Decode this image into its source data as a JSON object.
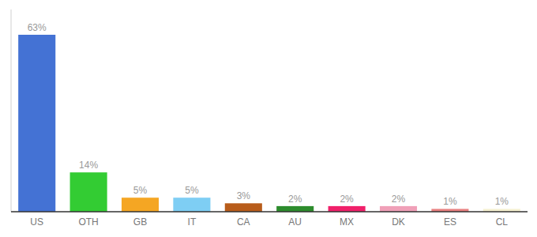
{
  "chart_data": {
    "type": "bar",
    "categories": [
      "US",
      "OTH",
      "GB",
      "IT",
      "CA",
      "AU",
      "MX",
      "DK",
      "ES",
      "CL"
    ],
    "values": [
      63,
      14,
      5,
      5,
      3,
      2,
      2,
      2,
      1,
      1
    ],
    "value_labels": [
      "63%",
      "14%",
      "5%",
      "5%",
      "3%",
      "2%",
      "2%",
      "2%",
      "1%",
      "1%"
    ],
    "colors": [
      "#4472d4",
      "#33cc33",
      "#f5a623",
      "#7ecef4",
      "#b85c1a",
      "#2d8c2d",
      "#f0206a",
      "#f0a0b8",
      "#e88080",
      "#f5f0d0"
    ],
    "ylim": [
      0,
      72
    ],
    "data_labels": true,
    "tick_labels": "x"
  }
}
